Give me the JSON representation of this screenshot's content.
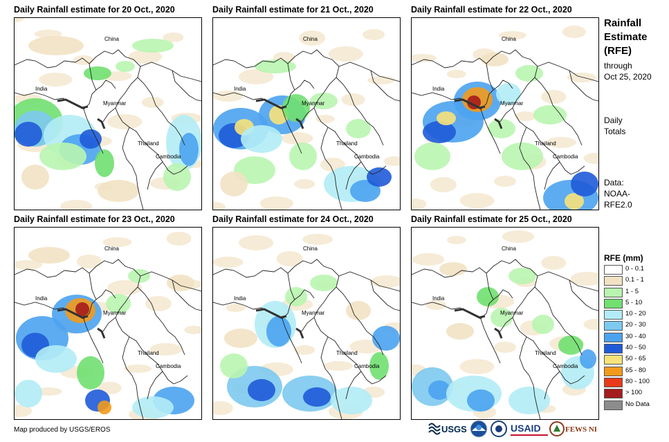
{
  "panels": [
    {
      "title": "Daily Rainfall estimate for 20 Oct., 2020"
    },
    {
      "title": "Daily Rainfall estimate for 21 Oct., 2020"
    },
    {
      "title": "Daily Rainfall estimate for 22 Oct., 2020"
    },
    {
      "title": "Daily Rainfall estimate for 23 Oct., 2020"
    },
    {
      "title": "Daily Rainfall estimate for 24 Oct., 2020"
    },
    {
      "title": "Daily Rainfall estimate for 25 Oct., 2020"
    }
  ],
  "map_labels": {
    "china": "China",
    "india": "India",
    "myanmar": "Myanmar",
    "thailand": "Thailand",
    "cambodia": "Cambodia"
  },
  "side": {
    "title_line1": "Rainfall",
    "title_line2": "Estimate",
    "title_line3": "(RFE)",
    "through_line1": "through",
    "through_line2": "Oct 25, 2020",
    "daily_line1": "Daily",
    "daily_line2": "Totals",
    "data_line1": "Data:",
    "data_line2": "NOAA-",
    "data_line3": "RFE2.0"
  },
  "legend": {
    "title": "RFE (mm)",
    "items": [
      {
        "label": "0 - 0.1",
        "color": "#ffffff"
      },
      {
        "label": "0.1 - 1",
        "color": "#f2e2c4"
      },
      {
        "label": "1 - 5",
        "color": "#b9f5b0"
      },
      {
        "label": "5 - 10",
        "color": "#70e070"
      },
      {
        "label": "10 - 20",
        "color": "#b3ecf6"
      },
      {
        "label": "20 - 30",
        "color": "#7dc9ef"
      },
      {
        "label": "30 - 40",
        "color": "#4ba3f0"
      },
      {
        "label": "40 - 50",
        "color": "#1f5bd8"
      },
      {
        "label": "50 - 65",
        "color": "#f7e27a"
      },
      {
        "label": "65 - 80",
        "color": "#f29a1c"
      },
      {
        "label": "80 - 100",
        "color": "#e83a1a"
      },
      {
        "label": "> 100",
        "color": "#a51c1c"
      },
      {
        "label": "No Data",
        "color": "#8c8c8c"
      }
    ]
  },
  "footer": {
    "credit": "Map produced by USGS/EROS",
    "logo_usgs": "USGS",
    "logo_usaid": "USAID",
    "logo_fews": "FEWS NET"
  }
}
